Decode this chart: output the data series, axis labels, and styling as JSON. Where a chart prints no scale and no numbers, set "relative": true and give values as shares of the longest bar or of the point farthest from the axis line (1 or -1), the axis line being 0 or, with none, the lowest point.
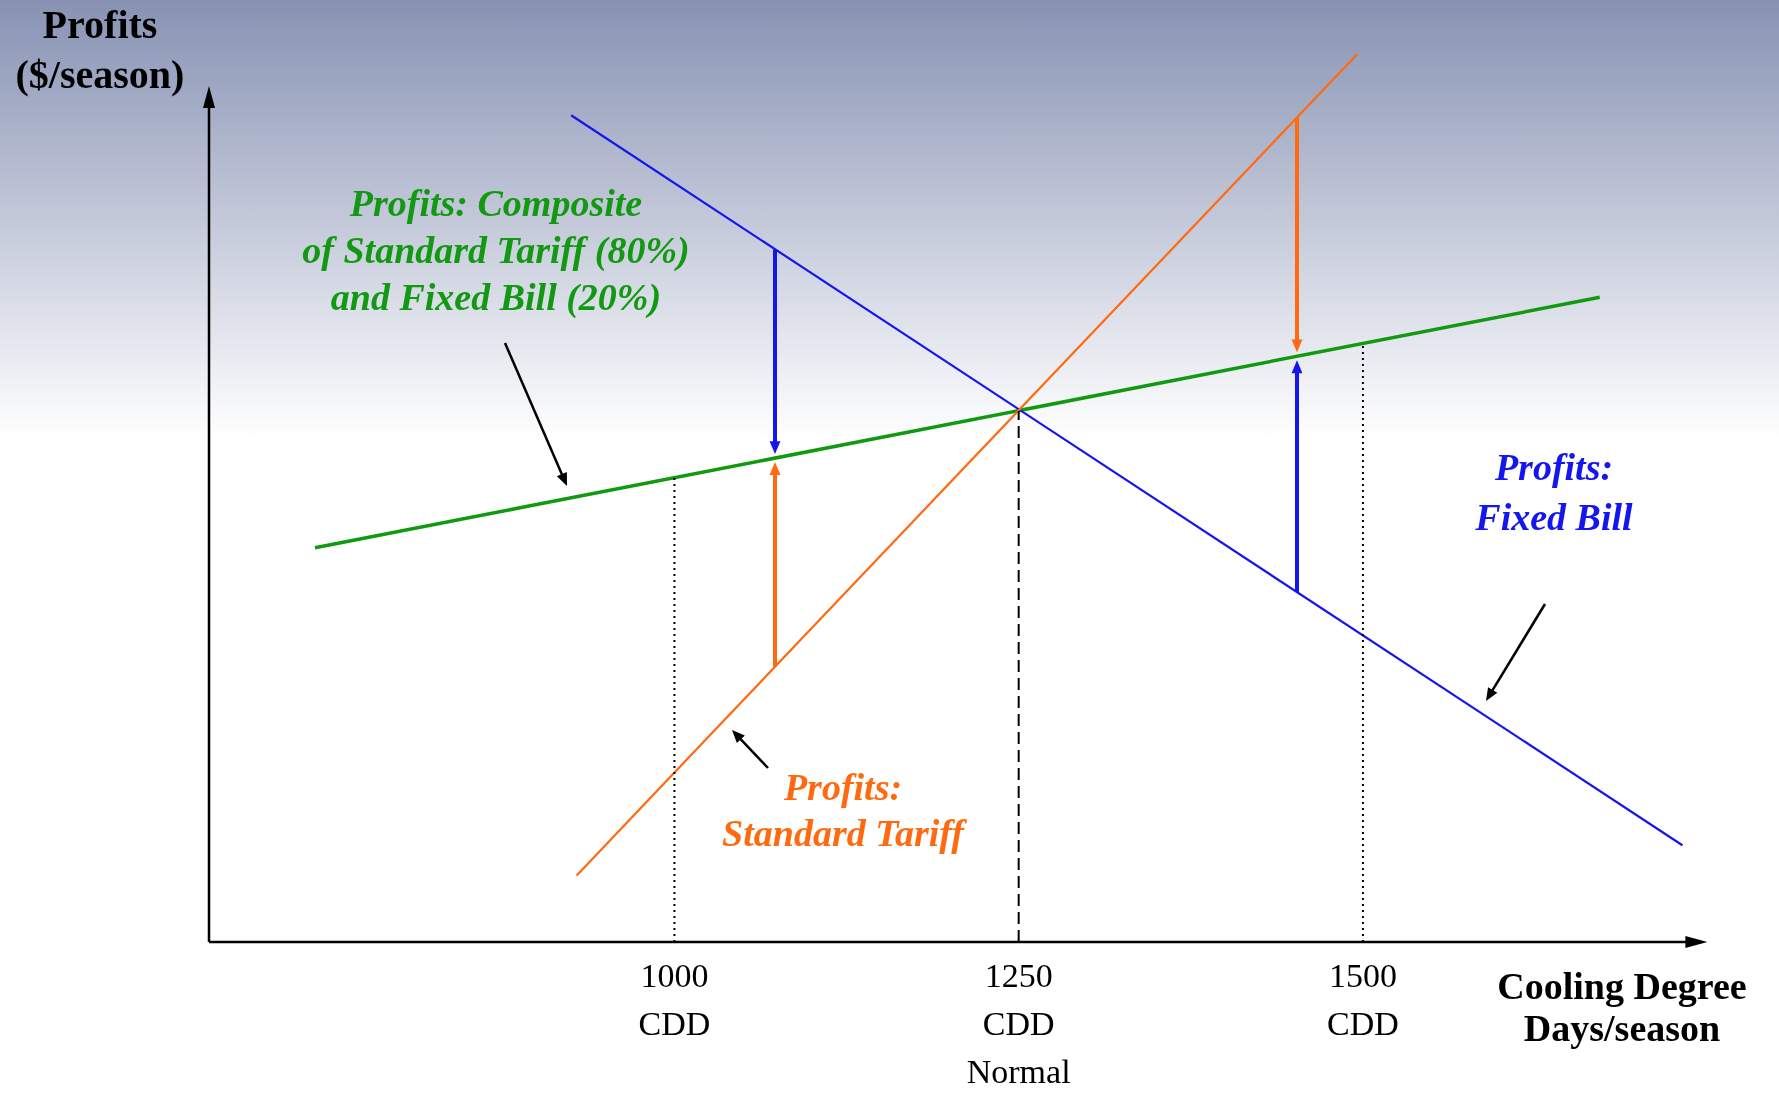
{
  "chart_data": {
    "type": "line",
    "relative": true,
    "xlabel": "Cooling Degree\nDays/season",
    "ylabel": "Profits\n($/season)",
    "xlim": [
      662,
      1740
    ],
    "xticks": [
      {
        "value": 1000,
        "label": "1000\nCDD"
      },
      {
        "value": 1250,
        "label": "1250\nCDD\nNormal"
      },
      {
        "value": 1500,
        "label": "1500\nCDD"
      }
    ],
    "legend": false,
    "series": [
      {
        "name": "Profits: Composite\nof Standard Tariff (80%)\nand Fixed Bill (20%)",
        "color": "#119911",
        "x": [
          739,
          1672
        ],
        "values": [
          0.444,
          0.726
        ]
      },
      {
        "name": "Profits:\nFixed Bill",
        "color": "#1515ee",
        "x": [
          925,
          1732
        ],
        "values": [
          0.931,
          0.109
        ]
      },
      {
        "name": "Profits:\nStandard Tariff",
        "color": "#ff6a10",
        "x": [
          929,
          1496
        ],
        "values": [
          0.075,
          1
        ]
      },
      {
        "color": "#000000",
        "line_style": "dotted",
        "x": [
          1000,
          1000
        ],
        "values": [
          0,
          0.523
        ]
      },
      {
        "color": "#000000",
        "line_style": "dashed",
        "x": [
          1250,
          1250
        ],
        "values": [
          0,
          0.598
        ]
      },
      {
        "color": "#000000",
        "line_style": "dotted",
        "x": [
          1500,
          1500
        ],
        "values": [
          0,
          0.674
        ]
      }
    ]
  }
}
